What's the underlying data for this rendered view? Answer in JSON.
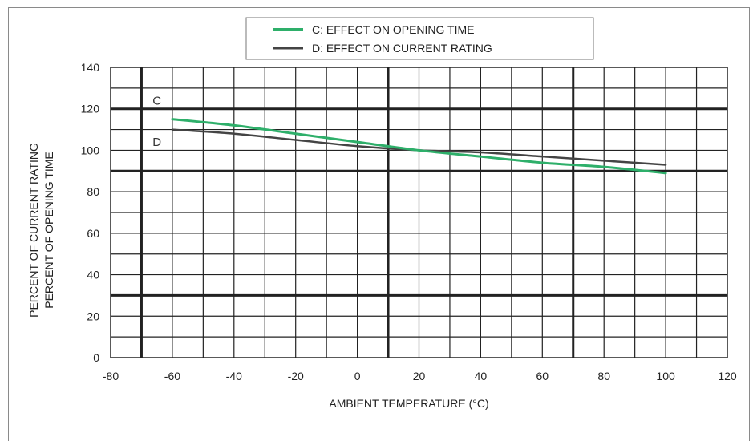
{
  "chart_data": {
    "type": "line",
    "xlabel": "AMBIENT TEMPERATURE (°C)",
    "ylabel_lines": [
      "PERCENT OF CURRENT RATING",
      "PERCENT OF OPENING TIME"
    ],
    "xlim": [
      -80,
      120
    ],
    "ylim": [
      0,
      140
    ],
    "x_ticks": [
      -80,
      -60,
      -40,
      -20,
      0,
      20,
      40,
      60,
      80,
      100,
      120
    ],
    "y_ticks": [
      0,
      20,
      40,
      60,
      80,
      100,
      120,
      140
    ],
    "grid": true,
    "legend_position": "top-center",
    "curve_letters": [
      "C",
      "D"
    ],
    "series": [
      {
        "name": "C: EFFECT ON OPENING TIME",
        "color": "#2eaf6a",
        "x": [
          -60,
          -40,
          -20,
          0,
          20,
          40,
          60,
          80,
          100
        ],
        "y": [
          115,
          112,
          108,
          104,
          100,
          97,
          94,
          92,
          89
        ]
      },
      {
        "name": "D: EFFECT ON CURRENT RATING",
        "color": "#444444",
        "x": [
          -60,
          -40,
          -20,
          0,
          20,
          40,
          60,
          80,
          100
        ],
        "y": [
          110,
          108,
          105,
          102,
          100,
          99,
          97,
          95,
          93
        ]
      }
    ]
  }
}
